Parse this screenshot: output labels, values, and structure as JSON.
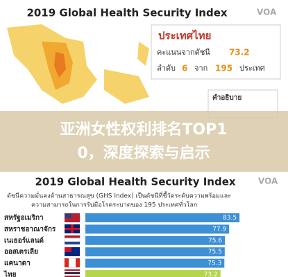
{
  "top_panel": {
    "title": "2019 Global Health Security Index",
    "logo": "VOA",
    "country_box": {
      "country": "ประเทศไทย",
      "score_label": "คะแนนจากดัชนี",
      "score": "73.2",
      "rank_label": "ลำดับ",
      "rank": "6",
      "rank_of": "จาก",
      "total": "195",
      "rank_unit": "ประเทศ"
    },
    "legend_title": "คำอธิบาย"
  },
  "overlay_title": [
    "亚洲女性权利排名TOP1",
    "0，深度探索与启示"
  ],
  "chart_data": {
    "type": "bar",
    "orientation": "horizontal",
    "title": "2019 Global Health Security Index",
    "logo": "VOA",
    "subtitle": [
      "ดัชนีความมั่นคงด้านสาธารณสุข (GHS Index) เป็นดัชนีที่ชี้วัดระดับความพร้อมและ",
      "ความสามารถในการรับมือโรคระบาดของ 195 ประเทศทั่วโลก"
    ],
    "categories": [
      "สหรัฐอเมริกา",
      "สหราชอาณาจักร",
      "เนเธอร์แลนด์",
      "ออสเตรเลีย",
      "แคนาดา",
      "ไทย"
    ],
    "values": [
      83.5,
      77.9,
      75.6,
      75.5,
      75.3,
      73.2
    ],
    "colors": [
      "#3d8fd6",
      "#3d8fd6",
      "#3d8fd6",
      "#3d8fd6",
      "#3d8fd6",
      "#b5d64c"
    ]
  }
}
